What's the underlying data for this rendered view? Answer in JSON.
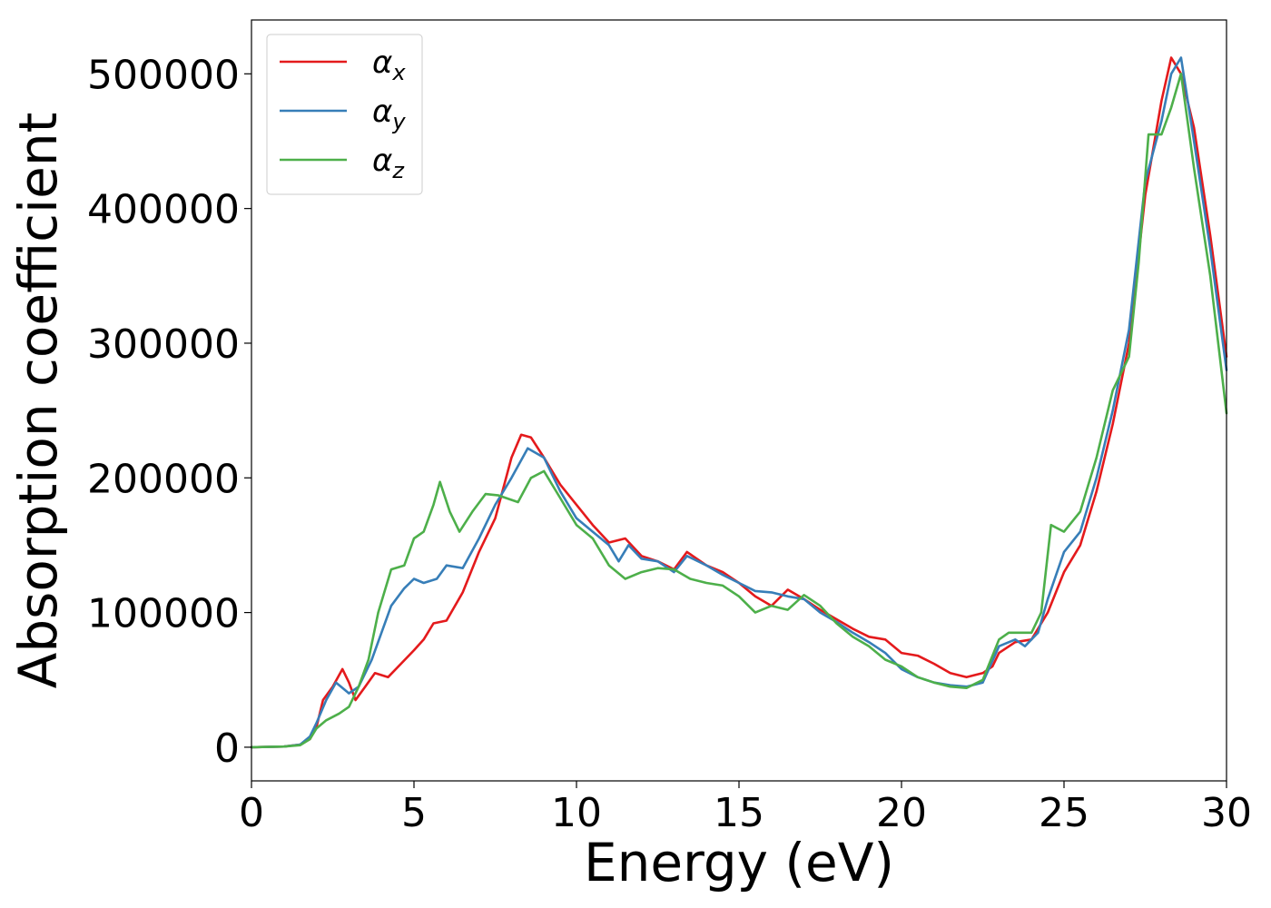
{
  "chart_data": {
    "type": "line",
    "xlabel": "Energy (eV)",
    "ylabel": "Absorption coefficient",
    "xlim": [
      0,
      30
    ],
    "ylim": [
      -25000,
      540000
    ],
    "xticks": [
      0,
      5,
      10,
      15,
      20,
      25,
      30
    ],
    "yticks": [
      0,
      100000,
      200000,
      300000,
      400000,
      500000
    ],
    "grid": false,
    "legend_position": "top-left",
    "series": [
      {
        "name": "α_x",
        "legend_base": "α",
        "legend_sub": "x",
        "color": "#e41a1c",
        "points": [
          [
            0,
            0
          ],
          [
            1,
            500
          ],
          [
            1.5,
            2000
          ],
          [
            1.8,
            6000
          ],
          [
            2,
            15000
          ],
          [
            2.2,
            35000
          ],
          [
            2.5,
            45000
          ],
          [
            2.8,
            58000
          ],
          [
            3,
            48000
          ],
          [
            3.2,
            35000
          ],
          [
            3.5,
            45000
          ],
          [
            3.8,
            55000
          ],
          [
            4.2,
            52000
          ],
          [
            4.6,
            62000
          ],
          [
            5,
            72000
          ],
          [
            5.3,
            80000
          ],
          [
            5.6,
            92000
          ],
          [
            6,
            94000
          ],
          [
            6.5,
            115000
          ],
          [
            7,
            145000
          ],
          [
            7.5,
            170000
          ],
          [
            8,
            215000
          ],
          [
            8.3,
            232000
          ],
          [
            8.6,
            230000
          ],
          [
            9,
            215000
          ],
          [
            9.5,
            195000
          ],
          [
            10,
            180000
          ],
          [
            10.5,
            165000
          ],
          [
            11,
            152000
          ],
          [
            11.5,
            155000
          ],
          [
            12,
            142000
          ],
          [
            12.5,
            138000
          ],
          [
            13,
            132000
          ],
          [
            13.4,
            145000
          ],
          [
            14,
            135000
          ],
          [
            14.5,
            130000
          ],
          [
            15,
            122000
          ],
          [
            15.5,
            112000
          ],
          [
            16,
            105000
          ],
          [
            16.5,
            117000
          ],
          [
            17,
            110000
          ],
          [
            17.5,
            102000
          ],
          [
            18,
            95000
          ],
          [
            18.5,
            88000
          ],
          [
            19,
            82000
          ],
          [
            19.5,
            80000
          ],
          [
            20,
            70000
          ],
          [
            20.5,
            68000
          ],
          [
            21,
            62000
          ],
          [
            21.5,
            55000
          ],
          [
            22,
            52000
          ],
          [
            22.5,
            55000
          ],
          [
            22.8,
            60000
          ],
          [
            23,
            70000
          ],
          [
            23.5,
            78000
          ],
          [
            24,
            80000
          ],
          [
            24.5,
            100000
          ],
          [
            25,
            130000
          ],
          [
            25.5,
            150000
          ],
          [
            26,
            190000
          ],
          [
            26.5,
            240000
          ],
          [
            27,
            300000
          ],
          [
            27.5,
            410000
          ],
          [
            28,
            480000
          ],
          [
            28.3,
            512000
          ],
          [
            28.6,
            500000
          ],
          [
            29,
            460000
          ],
          [
            29.5,
            380000
          ],
          [
            30,
            290000
          ]
        ]
      },
      {
        "name": "α_y",
        "legend_base": "α",
        "legend_sub": "y",
        "color": "#377eb8",
        "points": [
          [
            0,
            0
          ],
          [
            1,
            500
          ],
          [
            1.5,
            2000
          ],
          [
            1.8,
            8000
          ],
          [
            2,
            18000
          ],
          [
            2.3,
            35000
          ],
          [
            2.6,
            48000
          ],
          [
            3,
            40000
          ],
          [
            3.3,
            45000
          ],
          [
            3.7,
            65000
          ],
          [
            4,
            85000
          ],
          [
            4.3,
            105000
          ],
          [
            4.7,
            118000
          ],
          [
            5,
            125000
          ],
          [
            5.3,
            122000
          ],
          [
            5.7,
            125000
          ],
          [
            6,
            135000
          ],
          [
            6.5,
            133000
          ],
          [
            7,
            155000
          ],
          [
            7.5,
            180000
          ],
          [
            8,
            200000
          ],
          [
            8.5,
            222000
          ],
          [
            9,
            215000
          ],
          [
            9.5,
            190000
          ],
          [
            10,
            170000
          ],
          [
            10.5,
            160000
          ],
          [
            11,
            150000
          ],
          [
            11.3,
            138000
          ],
          [
            11.6,
            150000
          ],
          [
            12,
            140000
          ],
          [
            12.5,
            138000
          ],
          [
            13,
            130000
          ],
          [
            13.4,
            142000
          ],
          [
            14,
            135000
          ],
          [
            14.5,
            128000
          ],
          [
            15,
            122000
          ],
          [
            15.5,
            116000
          ],
          [
            16,
            115000
          ],
          [
            16.5,
            112000
          ],
          [
            17,
            110000
          ],
          [
            17.5,
            100000
          ],
          [
            18,
            93000
          ],
          [
            18.5,
            85000
          ],
          [
            19,
            78000
          ],
          [
            19.5,
            70000
          ],
          [
            20,
            58000
          ],
          [
            20.5,
            52000
          ],
          [
            21,
            48000
          ],
          [
            21.5,
            46000
          ],
          [
            22,
            45000
          ],
          [
            22.5,
            48000
          ],
          [
            23,
            75000
          ],
          [
            23.5,
            80000
          ],
          [
            23.8,
            75000
          ],
          [
            24.2,
            85000
          ],
          [
            24.5,
            110000
          ],
          [
            25,
            145000
          ],
          [
            25.5,
            160000
          ],
          [
            26,
            200000
          ],
          [
            26.5,
            250000
          ],
          [
            27,
            310000
          ],
          [
            27.5,
            420000
          ],
          [
            28,
            465000
          ],
          [
            28.3,
            500000
          ],
          [
            28.6,
            512000
          ],
          [
            29,
            450000
          ],
          [
            29.5,
            370000
          ],
          [
            30,
            280000
          ]
        ]
      },
      {
        "name": "α_z",
        "legend_base": "α",
        "legend_sub": "z",
        "color": "#4daf4a",
        "points": [
          [
            0,
            0
          ],
          [
            1,
            500
          ],
          [
            1.5,
            1500
          ],
          [
            1.8,
            6000
          ],
          [
            2,
            14000
          ],
          [
            2.3,
            20000
          ],
          [
            2.7,
            25000
          ],
          [
            3,
            30000
          ],
          [
            3.3,
            45000
          ],
          [
            3.6,
            65000
          ],
          [
            3.9,
            100000
          ],
          [
            4.3,
            132000
          ],
          [
            4.7,
            135000
          ],
          [
            5,
            155000
          ],
          [
            5.3,
            160000
          ],
          [
            5.6,
            180000
          ],
          [
            5.8,
            197000
          ],
          [
            6.1,
            175000
          ],
          [
            6.4,
            160000
          ],
          [
            6.8,
            175000
          ],
          [
            7.2,
            188000
          ],
          [
            7.6,
            187000
          ],
          [
            8.2,
            182000
          ],
          [
            8.6,
            200000
          ],
          [
            9,
            205000
          ],
          [
            9.5,
            185000
          ],
          [
            10,
            165000
          ],
          [
            10.5,
            155000
          ],
          [
            11,
            135000
          ],
          [
            11.5,
            125000
          ],
          [
            12,
            130000
          ],
          [
            12.5,
            133000
          ],
          [
            13,
            132000
          ],
          [
            13.5,
            125000
          ],
          [
            14,
            122000
          ],
          [
            14.5,
            120000
          ],
          [
            15,
            112000
          ],
          [
            15.5,
            100000
          ],
          [
            16,
            105000
          ],
          [
            16.5,
            102000
          ],
          [
            17,
            113000
          ],
          [
            17.5,
            105000
          ],
          [
            18,
            92000
          ],
          [
            18.5,
            82000
          ],
          [
            19,
            75000
          ],
          [
            19.5,
            65000
          ],
          [
            20,
            60000
          ],
          [
            20.5,
            52000
          ],
          [
            21,
            48000
          ],
          [
            21.5,
            45000
          ],
          [
            22,
            44000
          ],
          [
            22.5,
            50000
          ],
          [
            23,
            80000
          ],
          [
            23.3,
            85000
          ],
          [
            23.7,
            85000
          ],
          [
            24,
            85000
          ],
          [
            24.3,
            100000
          ],
          [
            24.6,
            165000
          ],
          [
            25,
            160000
          ],
          [
            25.5,
            175000
          ],
          [
            26,
            215000
          ],
          [
            26.5,
            265000
          ],
          [
            27,
            290000
          ],
          [
            27.3,
            360000
          ],
          [
            27.6,
            455000
          ],
          [
            28,
            455000
          ],
          [
            28.3,
            475000
          ],
          [
            28.6,
            500000
          ],
          [
            29,
            430000
          ],
          [
            29.5,
            350000
          ],
          [
            30,
            248000
          ]
        ]
      }
    ]
  }
}
